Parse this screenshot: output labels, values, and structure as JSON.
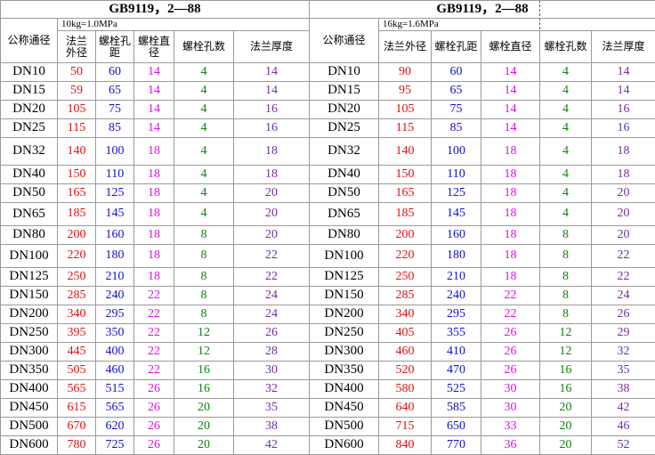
{
  "tables": [
    {
      "title": "GB9119，2—88",
      "pressure": "10kg=1.0MPa",
      "headers": [
        "公称通径",
        "法兰\n外径",
        "螺栓孔\n距",
        "螺栓直\n径",
        "螺栓孔数",
        "法兰厚度"
      ],
      "rows": [
        [
          "DN10",
          50,
          60,
          14,
          4,
          14
        ],
        [
          "DN15",
          59,
          65,
          14,
          4,
          14
        ],
        [
          "DN20",
          105,
          75,
          14,
          4,
          16
        ],
        [
          "DN25",
          115,
          85,
          14,
          4,
          16
        ],
        [
          "DN32",
          140,
          100,
          18,
          4,
          18
        ],
        [
          "DN40",
          150,
          110,
          18,
          4,
          18
        ],
        [
          "DN50",
          165,
          125,
          18,
          4,
          20
        ],
        [
          "DN65",
          185,
          145,
          18,
          4,
          20
        ],
        [
          "DN80",
          200,
          160,
          18,
          8,
          20
        ],
        [
          "DN100",
          220,
          180,
          18,
          8,
          22
        ],
        [
          "DN125",
          250,
          210,
          18,
          8,
          22
        ],
        [
          "DN150",
          285,
          240,
          22,
          8,
          24
        ],
        [
          "DN200",
          340,
          295,
          22,
          8,
          24
        ],
        [
          "DN250",
          395,
          350,
          22,
          12,
          26
        ],
        [
          "DN300",
          445,
          400,
          22,
          12,
          28
        ],
        [
          "DN350",
          505,
          460,
          22,
          16,
          30
        ],
        [
          "DN400",
          565,
          515,
          26,
          16,
          32
        ],
        [
          "DN450",
          615,
          565,
          26,
          20,
          35
        ],
        [
          "DN500",
          670,
          620,
          26,
          20,
          38
        ],
        [
          "DN600",
          780,
          725,
          26,
          20,
          42
        ]
      ]
    },
    {
      "title": "GB9119，2—88",
      "pressure": "16kg=1.6MPa",
      "headers": [
        "公称通径",
        "法兰外径",
        "螺栓孔距",
        "螺栓直径",
        "螺栓孔数",
        "法兰厚度"
      ],
      "rows": [
        [
          "DN10",
          90,
          60,
          14,
          4,
          14
        ],
        [
          "DN15",
          95,
          65,
          14,
          4,
          14
        ],
        [
          "DN20",
          105,
          75,
          14,
          4,
          16
        ],
        [
          "DN25",
          115,
          85,
          14,
          4,
          16
        ],
        [
          "DN32",
          140,
          100,
          18,
          4,
          18
        ],
        [
          "DN40",
          150,
          110,
          18,
          4,
          18
        ],
        [
          "DN50",
          165,
          125,
          18,
          4,
          20
        ],
        [
          "DN65",
          185,
          145,
          18,
          4,
          20
        ],
        [
          "DN80",
          200,
          160,
          18,
          8,
          20
        ],
        [
          "DN100",
          220,
          180,
          18,
          8,
          22
        ],
        [
          "DN125",
          250,
          210,
          18,
          8,
          22
        ],
        [
          "DN150",
          285,
          240,
          22,
          8,
          24
        ],
        [
          "DN200",
          340,
          295,
          22,
          8,
          26
        ],
        [
          "DN250",
          405,
          355,
          26,
          12,
          29
        ],
        [
          "DN300",
          460,
          410,
          26,
          12,
          32
        ],
        [
          "DN350",
          520,
          470,
          26,
          16,
          35
        ],
        [
          "DN400",
          580,
          525,
          30,
          16,
          38
        ],
        [
          "DN450",
          640,
          585,
          30,
          20,
          42
        ],
        [
          "DN500",
          715,
          650,
          33,
          20,
          46
        ],
        [
          "DN600",
          840,
          770,
          36,
          20,
          52
        ]
      ]
    }
  ]
}
